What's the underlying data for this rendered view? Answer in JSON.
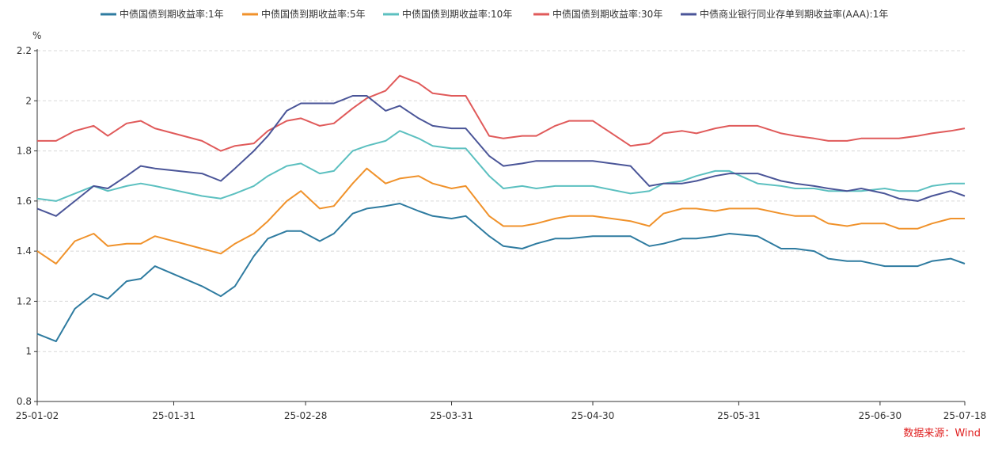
{
  "chart_data": {
    "type": "line",
    "unit": "%",
    "source": "数据来源：Wind",
    "ylim": [
      0.8,
      2.2
    ],
    "yticks": [
      0.8,
      1,
      1.2,
      1.4,
      1.6,
      1.8,
      2,
      2.2
    ],
    "ytick_labels": [
      "0.8",
      "1",
      "1.2",
      "1.4",
      "1.6",
      "1.8",
      "2",
      "2.2"
    ],
    "xlim": [
      "2025-01-02",
      "2025-07-18"
    ],
    "xticks": [
      "2025-01-02",
      "2025-01-31",
      "2025-02-28",
      "2025-03-31",
      "2025-04-30",
      "2025-05-31",
      "2025-06-30",
      "2025-07-18"
    ],
    "xtick_labels": [
      "25-01-02",
      "25-01-31",
      "25-02-28",
      "25-03-31",
      "25-04-30",
      "25-05-31",
      "25-06-30",
      "25-07-18"
    ],
    "grid": "horizontal dashed",
    "legend": "top",
    "dates": [
      "2025-01-02",
      "2025-01-06",
      "2025-01-10",
      "2025-01-14",
      "2025-01-17",
      "2025-01-21",
      "2025-01-24",
      "2025-01-27",
      "2025-02-06",
      "2025-02-10",
      "2025-02-13",
      "2025-02-17",
      "2025-02-20",
      "2025-02-24",
      "2025-02-27",
      "2025-03-03",
      "2025-03-06",
      "2025-03-10",
      "2025-03-13",
      "2025-03-17",
      "2025-03-20",
      "2025-03-24",
      "2025-03-27",
      "2025-03-31",
      "2025-04-03",
      "2025-04-08",
      "2025-04-11",
      "2025-04-15",
      "2025-04-18",
      "2025-04-22",
      "2025-04-25",
      "2025-04-30",
      "2025-05-08",
      "2025-05-12",
      "2025-05-15",
      "2025-05-19",
      "2025-05-22",
      "2025-05-26",
      "2025-05-29",
      "2025-06-04",
      "2025-06-09",
      "2025-06-12",
      "2025-06-16",
      "2025-06-19",
      "2025-06-23",
      "2025-06-26",
      "2025-07-01",
      "2025-07-04",
      "2025-07-08",
      "2025-07-11",
      "2025-07-15",
      "2025-07-18"
    ],
    "series": [
      {
        "name": "中债国债到期收益率:1年",
        "color": "#2e7ba0",
        "values": [
          1.07,
          1.04,
          1.17,
          1.23,
          1.21,
          1.28,
          1.29,
          1.34,
          1.26,
          1.22,
          1.26,
          1.38,
          1.45,
          1.48,
          1.48,
          1.44,
          1.47,
          1.55,
          1.57,
          1.58,
          1.59,
          1.56,
          1.54,
          1.53,
          1.54,
          1.46,
          1.42,
          1.41,
          1.43,
          1.45,
          1.45,
          1.46,
          1.46,
          1.42,
          1.43,
          1.45,
          1.45,
          1.46,
          1.47,
          1.46,
          1.41,
          1.41,
          1.4,
          1.37,
          1.36,
          1.36,
          1.34,
          1.34,
          1.34,
          1.36,
          1.37,
          1.35
        ]
      },
      {
        "name": "中债国债到期收益率:5年",
        "color": "#f0922b",
        "values": [
          1.4,
          1.35,
          1.44,
          1.47,
          1.42,
          1.43,
          1.43,
          1.46,
          1.41,
          1.39,
          1.43,
          1.47,
          1.52,
          1.6,
          1.64,
          1.57,
          1.58,
          1.67,
          1.73,
          1.67,
          1.69,
          1.7,
          1.67,
          1.65,
          1.66,
          1.54,
          1.5,
          1.5,
          1.51,
          1.53,
          1.54,
          1.54,
          1.52,
          1.5,
          1.55,
          1.57,
          1.57,
          1.56,
          1.57,
          1.57,
          1.55,
          1.54,
          1.54,
          1.51,
          1.5,
          1.51,
          1.51,
          1.49,
          1.49,
          1.51,
          1.53,
          1.53
        ]
      },
      {
        "name": "中债国债到期收益率:10年",
        "color": "#5cc0c0",
        "values": [
          1.61,
          1.6,
          1.63,
          1.66,
          1.64,
          1.66,
          1.67,
          1.66,
          1.62,
          1.61,
          1.63,
          1.66,
          1.7,
          1.74,
          1.75,
          1.71,
          1.72,
          1.8,
          1.82,
          1.84,
          1.88,
          1.85,
          1.82,
          1.81,
          1.81,
          1.7,
          1.65,
          1.66,
          1.65,
          1.66,
          1.66,
          1.66,
          1.63,
          1.64,
          1.67,
          1.68,
          1.7,
          1.72,
          1.72,
          1.67,
          1.66,
          1.65,
          1.65,
          1.64,
          1.64,
          1.64,
          1.65,
          1.64,
          1.64,
          1.66,
          1.67,
          1.67
        ]
      },
      {
        "name": "中债国债到期收益率:30年",
        "color": "#e05a5a",
        "values": [
          1.84,
          1.84,
          1.88,
          1.9,
          1.86,
          1.91,
          1.92,
          1.89,
          1.84,
          1.8,
          1.82,
          1.83,
          1.88,
          1.92,
          1.93,
          1.9,
          1.91,
          1.97,
          2.01,
          2.04,
          2.1,
          2.07,
          2.03,
          2.02,
          2.02,
          1.86,
          1.85,
          1.86,
          1.86,
          1.9,
          1.92,
          1.92,
          1.82,
          1.83,
          1.87,
          1.88,
          1.87,
          1.89,
          1.9,
          1.9,
          1.87,
          1.86,
          1.85,
          1.84,
          1.84,
          1.85,
          1.85,
          1.85,
          1.86,
          1.87,
          1.88,
          1.89
        ]
      },
      {
        "name": "中债商业银行同业存单到期收益率(AAA):1年",
        "color": "#4a5598",
        "values": [
          1.57,
          1.54,
          1.6,
          1.66,
          1.65,
          1.7,
          1.74,
          1.73,
          1.71,
          1.68,
          1.73,
          1.8,
          1.86,
          1.96,
          1.99,
          1.99,
          1.99,
          2.02,
          2.02,
          1.96,
          1.98,
          1.93,
          1.9,
          1.89,
          1.89,
          1.78,
          1.74,
          1.75,
          1.76,
          1.76,
          1.76,
          1.76,
          1.74,
          1.66,
          1.67,
          1.67,
          1.68,
          1.7,
          1.71,
          1.71,
          1.68,
          1.67,
          1.66,
          1.65,
          1.64,
          1.65,
          1.63,
          1.61,
          1.6,
          1.62,
          1.64,
          1.62
        ]
      }
    ]
  }
}
